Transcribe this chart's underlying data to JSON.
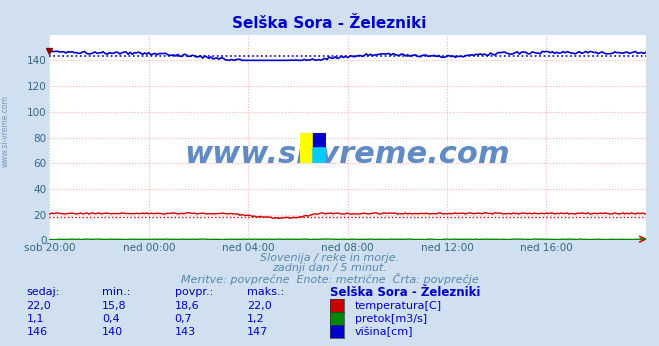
{
  "title": "Selška Sora - Železniki",
  "title_color": "#0000cc",
  "bg_color": "#d0e0f0",
  "plot_bg_color": "#ffffff",
  "grid_color": "#ffb0b0",
  "grid_style": ":",
  "ylim": [
    0,
    160
  ],
  "yticks": [
    0,
    20,
    40,
    60,
    80,
    100,
    120,
    140
  ],
  "xlim": [
    0,
    288
  ],
  "xtick_labels": [
    "sob 20:00",
    "ned 00:00",
    "ned 04:00",
    "ned 08:00",
    "ned 12:00",
    "ned 16:00"
  ],
  "xtick_positions": [
    0,
    48,
    96,
    144,
    192,
    240
  ],
  "temp_color": "#cc0000",
  "flow_color": "#008800",
  "height_color": "#0000cc",
  "avg_temp": 18.6,
  "avg_flow": 0.7,
  "avg_height": 143,
  "temp_min": 15.8,
  "temp_max": 22.0,
  "flow_min": 0.4,
  "flow_max": 1.2,
  "height_min": 140,
  "height_max": 147,
  "watermark": "www.si-vreme.com",
  "watermark_color": "#4477bb",
  "subtitle1": "Slovenija / reke in morje.",
  "subtitle2": "zadnji dan / 5 minut.",
  "subtitle3": "Meritve: povprečne  Enote: metrične  Črta: povprečje",
  "subtitle_color": "#5588aa",
  "table_header": [
    "sedaj:",
    "min.:",
    "povpr.:",
    "maks.:",
    "Selška Sora - Železniki"
  ],
  "table_color": "#0000cc",
  "table_rows": [
    [
      "22,0",
      "15,8",
      "18,6",
      "22,0"
    ],
    [
      "1,1",
      "0,4",
      "0,7",
      "1,2"
    ],
    [
      "146",
      "140",
      "143",
      "147"
    ]
  ],
  "legend_labels": [
    "temperatura[C]",
    "pretok[m3/s]",
    "višina[cm]"
  ],
  "legend_colors": [
    "#cc0000",
    "#008800",
    "#0000cc"
  ],
  "axis_label_color": "#336688",
  "left_label": "www.si-vreme.com",
  "left_label_color": "#7799bb"
}
